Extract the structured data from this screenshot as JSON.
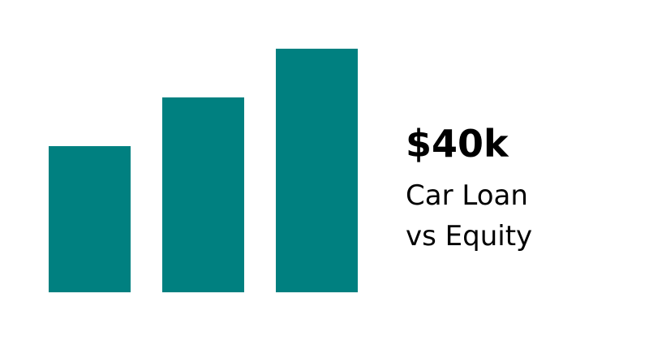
{
  "graphic": {
    "accent_color": "#008080",
    "bars": [
      {
        "level": 0.5
      },
      {
        "level": 0.6667
      },
      {
        "level": 0.8333
      }
    ],
    "headline": "$40k",
    "subline_1": "Car Loan",
    "subline_2": "vs Equity"
  }
}
